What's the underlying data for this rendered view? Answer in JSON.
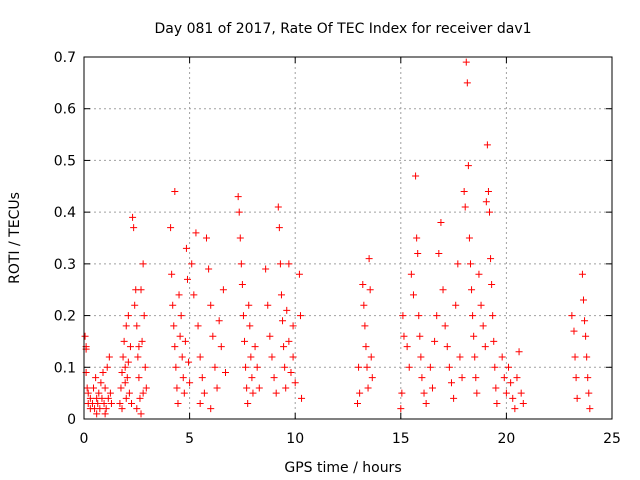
{
  "chart_data": {
    "type": "scatter",
    "title": "Day 081 of 2017, Rate Of TEC Index for receiver dav1",
    "xlabel": "GPS time / hours",
    "ylabel": "ROTI / TECUs",
    "xlim": [
      0,
      25
    ],
    "ylim": [
      0,
      0.7
    ],
    "xticks": [
      0,
      5,
      10,
      15,
      20,
      25
    ],
    "yticks": [
      0,
      0.1,
      0.2,
      0.3,
      0.4,
      0.5,
      0.6,
      0.7
    ],
    "xtick_labels": [
      "0",
      "5",
      "10",
      "15",
      "20",
      "25"
    ],
    "ytick_labels": [
      "0",
      "0.1",
      "0.2",
      "0.3",
      "0.4",
      "0.5",
      "0.6",
      "0.7"
    ],
    "grid": true,
    "marker": "+",
    "color": "#ff0000",
    "series": [
      {
        "points": [
          [
            0.05,
            0.16
          ],
          [
            0.1,
            0.14
          ],
          [
            0.1,
            0.135
          ],
          [
            0.1,
            0.09
          ],
          [
            0.15,
            0.06
          ],
          [
            0.2,
            0.03
          ],
          [
            0.2,
            0.05
          ],
          [
            0.3,
            0.02
          ],
          [
            0.3,
            0.04
          ],
          [
            0.4,
            0.03
          ],
          [
            0.45,
            0.06
          ],
          [
            0.5,
            0.02
          ],
          [
            0.55,
            0.08
          ],
          [
            0.6,
            0.04
          ],
          [
            0.65,
            0.03
          ],
          [
            0.7,
            0.05
          ],
          [
            0.75,
            0.02
          ],
          [
            0.8,
            0.07
          ],
          [
            0.85,
            0.04
          ],
          [
            0.9,
            0.09
          ],
          [
            0.95,
            0.03
          ],
          [
            1.0,
            0.06
          ],
          [
            1.05,
            0.02
          ],
          [
            1.1,
            0.1
          ],
          [
            1.15,
            0.04
          ],
          [
            1.2,
            0.12
          ],
          [
            1.25,
            0.05
          ],
          [
            1.3,
            0.03
          ],
          [
            1.0,
            0.01
          ],
          [
            0.6,
            0.01
          ],
          [
            1.7,
            0.03
          ],
          [
            1.75,
            0.06
          ],
          [
            1.8,
            0.09
          ],
          [
            1.85,
            0.12
          ],
          [
            1.9,
            0.15
          ],
          [
            1.95,
            0.1
          ],
          [
            2.0,
            0.18
          ],
          [
            2.05,
            0.08
          ],
          [
            2.1,
            0.2
          ],
          [
            2.15,
            0.05
          ],
          [
            2.2,
            0.14
          ],
          [
            2.25,
            0.03
          ],
          [
            1.8,
            0.02
          ],
          [
            2.0,
            0.04
          ],
          [
            2.1,
            0.11
          ],
          [
            1.95,
            0.07
          ],
          [
            2.3,
            0.39
          ],
          [
            2.35,
            0.37
          ],
          [
            2.4,
            0.22
          ],
          [
            2.45,
            0.25
          ],
          [
            2.5,
            0.18
          ],
          [
            2.55,
            0.12
          ],
          [
            2.6,
            0.08
          ],
          [
            2.65,
            0.04
          ],
          [
            2.7,
            0.25
          ],
          [
            2.75,
            0.15
          ],
          [
            2.8,
            0.3
          ],
          [
            2.85,
            0.2
          ],
          [
            2.9,
            0.1
          ],
          [
            2.95,
            0.06
          ],
          [
            2.5,
            0.02
          ],
          [
            2.7,
            0.01
          ],
          [
            2.6,
            0.14
          ],
          [
            2.8,
            0.05
          ],
          [
            4.3,
            0.44
          ],
          [
            4.1,
            0.37
          ],
          [
            4.15,
            0.28
          ],
          [
            4.2,
            0.22
          ],
          [
            4.25,
            0.18
          ],
          [
            4.3,
            0.14
          ],
          [
            4.35,
            0.1
          ],
          [
            4.4,
            0.06
          ],
          [
            4.45,
            0.03
          ],
          [
            4.5,
            0.24
          ],
          [
            4.55,
            0.16
          ],
          [
            4.6,
            0.2
          ],
          [
            4.65,
            0.12
          ],
          [
            4.7,
            0.08
          ],
          [
            4.75,
            0.05
          ],
          [
            4.8,
            0.15
          ],
          [
            4.85,
            0.33
          ],
          [
            4.9,
            0.27
          ],
          [
            4.95,
            0.11
          ],
          [
            5.0,
            0.07
          ],
          [
            5.1,
            0.3
          ],
          [
            5.2,
            0.24
          ],
          [
            5.3,
            0.36
          ],
          [
            5.4,
            0.18
          ],
          [
            5.5,
            0.12
          ],
          [
            5.6,
            0.08
          ],
          [
            5.7,
            0.05
          ],
          [
            5.8,
            0.35
          ],
          [
            5.9,
            0.29
          ],
          [
            6.0,
            0.22
          ],
          [
            6.1,
            0.16
          ],
          [
            6.2,
            0.1
          ],
          [
            6.3,
            0.06
          ],
          [
            6.4,
            0.19
          ],
          [
            6.5,
            0.14
          ],
          [
            6.6,
            0.25
          ],
          [
            6.7,
            0.09
          ],
          [
            5.5,
            0.03
          ],
          [
            6.0,
            0.02
          ],
          [
            7.3,
            0.43
          ],
          [
            7.35,
            0.4
          ],
          [
            7.4,
            0.35
          ],
          [
            7.45,
            0.3
          ],
          [
            7.5,
            0.26
          ],
          [
            7.55,
            0.2
          ],
          [
            7.6,
            0.15
          ],
          [
            7.65,
            0.1
          ],
          [
            7.7,
            0.06
          ],
          [
            7.75,
            0.03
          ],
          [
            7.8,
            0.22
          ],
          [
            7.85,
            0.18
          ],
          [
            7.9,
            0.12
          ],
          [
            7.95,
            0.08
          ],
          [
            8.0,
            0.05
          ],
          [
            8.1,
            0.14
          ],
          [
            8.2,
            0.1
          ],
          [
            8.3,
            0.06
          ],
          [
            8.6,
            0.29
          ],
          [
            8.7,
            0.22
          ],
          [
            8.8,
            0.16
          ],
          [
            8.9,
            0.12
          ],
          [
            9.0,
            0.08
          ],
          [
            9.1,
            0.05
          ],
          [
            9.2,
            0.41
          ],
          [
            9.25,
            0.37
          ],
          [
            9.3,
            0.3
          ],
          [
            9.35,
            0.24
          ],
          [
            9.4,
            0.19
          ],
          [
            9.45,
            0.14
          ],
          [
            9.5,
            0.1
          ],
          [
            9.55,
            0.06
          ],
          [
            9.6,
            0.21
          ],
          [
            9.7,
            0.15
          ],
          [
            9.8,
            0.09
          ],
          [
            9.9,
            0.12
          ],
          [
            10.0,
            0.07
          ],
          [
            10.2,
            0.28
          ],
          [
            10.25,
            0.2
          ],
          [
            10.3,
            0.04
          ],
          [
            9.7,
            0.3
          ],
          [
            9.9,
            0.18
          ],
          [
            12.95,
            0.03
          ],
          [
            13.0,
            0.1
          ],
          [
            13.05,
            0.05
          ],
          [
            13.2,
            0.26
          ],
          [
            13.25,
            0.22
          ],
          [
            13.3,
            0.18
          ],
          [
            13.35,
            0.14
          ],
          [
            13.4,
            0.1
          ],
          [
            13.45,
            0.06
          ],
          [
            13.5,
            0.31
          ],
          [
            13.55,
            0.25
          ],
          [
            13.6,
            0.12
          ],
          [
            13.65,
            0.08
          ],
          [
            15.0,
            0.02
          ],
          [
            15.05,
            0.05
          ],
          [
            15.1,
            0.2
          ],
          [
            15.15,
            0.16
          ],
          [
            15.3,
            0.14
          ],
          [
            15.4,
            0.1
          ],
          [
            15.5,
            0.28
          ],
          [
            15.6,
            0.24
          ],
          [
            15.7,
            0.47
          ],
          [
            15.75,
            0.35
          ],
          [
            15.8,
            0.32
          ],
          [
            15.85,
            0.2
          ],
          [
            15.9,
            0.16
          ],
          [
            15.95,
            0.12
          ],
          [
            16.0,
            0.08
          ],
          [
            16.1,
            0.05
          ],
          [
            16.2,
            0.03
          ],
          [
            16.4,
            0.1
          ],
          [
            16.5,
            0.06
          ],
          [
            16.6,
            0.15
          ],
          [
            16.7,
            0.2
          ],
          [
            16.8,
            0.32
          ],
          [
            16.9,
            0.38
          ],
          [
            17.0,
            0.25
          ],
          [
            17.1,
            0.18
          ],
          [
            17.2,
            0.14
          ],
          [
            17.3,
            0.1
          ],
          [
            17.4,
            0.07
          ],
          [
            17.5,
            0.04
          ],
          [
            17.6,
            0.22
          ],
          [
            17.7,
            0.3
          ],
          [
            17.8,
            0.12
          ],
          [
            17.9,
            0.08
          ],
          [
            18.0,
            0.44
          ],
          [
            18.05,
            0.41
          ],
          [
            18.1,
            0.69
          ],
          [
            18.15,
            0.65
          ],
          [
            18.2,
            0.49
          ],
          [
            18.25,
            0.35
          ],
          [
            18.3,
            0.3
          ],
          [
            18.35,
            0.25
          ],
          [
            18.4,
            0.2
          ],
          [
            18.45,
            0.16
          ],
          [
            18.5,
            0.12
          ],
          [
            18.55,
            0.08
          ],
          [
            18.6,
            0.05
          ],
          [
            18.7,
            0.28
          ],
          [
            18.8,
            0.22
          ],
          [
            18.9,
            0.18
          ],
          [
            19.0,
            0.14
          ],
          [
            19.05,
            0.42
          ],
          [
            19.1,
            0.53
          ],
          [
            19.15,
            0.44
          ],
          [
            19.2,
            0.4
          ],
          [
            19.25,
            0.31
          ],
          [
            19.3,
            0.26
          ],
          [
            19.35,
            0.2
          ],
          [
            19.4,
            0.15
          ],
          [
            19.45,
            0.1
          ],
          [
            19.5,
            0.06
          ],
          [
            19.55,
            0.03
          ],
          [
            19.8,
            0.12
          ],
          [
            19.9,
            0.08
          ],
          [
            20.0,
            0.05
          ],
          [
            20.1,
            0.1
          ],
          [
            20.2,
            0.07
          ],
          [
            20.3,
            0.04
          ],
          [
            20.4,
            0.02
          ],
          [
            20.5,
            0.08
          ],
          [
            20.6,
            0.13
          ],
          [
            20.7,
            0.05
          ],
          [
            20.8,
            0.03
          ],
          [
            23.1,
            0.2
          ],
          [
            23.2,
            0.17
          ],
          [
            23.25,
            0.12
          ],
          [
            23.3,
            0.08
          ],
          [
            23.35,
            0.04
          ],
          [
            23.6,
            0.28
          ],
          [
            23.65,
            0.23
          ],
          [
            23.7,
            0.19
          ],
          [
            23.75,
            0.16
          ],
          [
            23.8,
            0.12
          ],
          [
            23.85,
            0.08
          ],
          [
            23.9,
            0.05
          ],
          [
            23.95,
            0.02
          ]
        ]
      }
    ]
  }
}
